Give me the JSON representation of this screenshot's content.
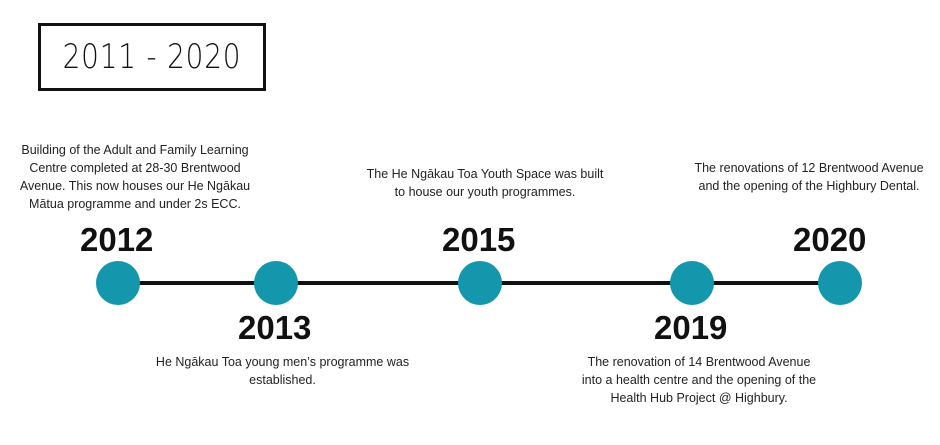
{
  "title": "2011 - 2020",
  "colors": {
    "dot": "#1497ad",
    "line": "#111111"
  },
  "events": [
    {
      "year": "2012",
      "description": "Building of the Adult and Family Learning\nCentre completed at 28-30 Brentwood\nAvenue. This now houses our  He Ngākau\nMātua programme and under 2s ECC."
    },
    {
      "year": "2013",
      "description": "He Ngākau Toa young men’s programme was\nestablished."
    },
    {
      "year": "2015",
      "description": "The He Ngākau Toa Youth Space was built\nto house our youth programmes."
    },
    {
      "year": "2019",
      "description": "The renovation of 14 Brentwood Avenue\ninto a health centre and the opening of the\nHealth Hub Project @ Highbury."
    },
    {
      "year": "2020",
      "description": "The renovations of 12 Brentwood Avenue\nand the opening of the Highbury Dental."
    }
  ]
}
